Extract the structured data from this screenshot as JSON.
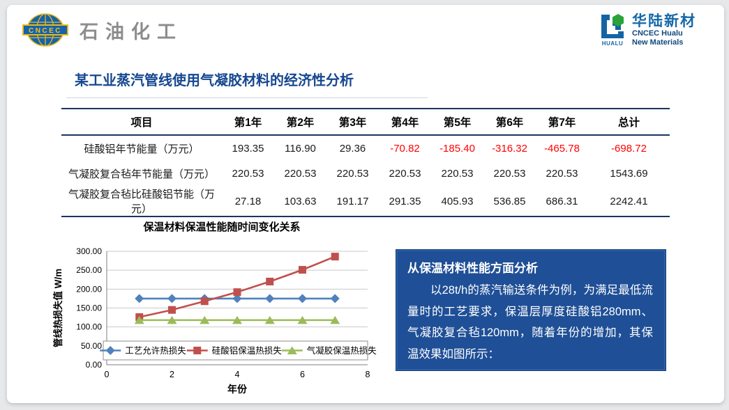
{
  "header": {
    "left_logo": {
      "emblem_text": "CNCEC",
      "brand_text": "石油化工"
    },
    "right_logo": {
      "icon_word": "HUALU",
      "brand_cn": "华陆新材",
      "brand_en_line1": "CNCEC Hualu",
      "brand_en_line2": "New Materials"
    }
  },
  "title": "某工业蒸汽管线使用气凝胶材料的经济性分析",
  "table": {
    "headers": [
      "项目",
      "第1年",
      "第2年",
      "第3年",
      "第4年",
      "第5年",
      "第6年",
      "第7年",
      "总计"
    ],
    "rows": [
      {
        "label": "硅酸铝年节能量（万元）",
        "values": [
          "193.35",
          "116.90",
          "29.36",
          "-70.82",
          "-185.40",
          "-316.32",
          "-465.78",
          "-698.72"
        ]
      },
      {
        "label": "气凝胶复合毡年节能量（万元）",
        "values": [
          "220.53",
          "220.53",
          "220.53",
          "220.53",
          "220.53",
          "220.53",
          "220.53",
          "1543.69"
        ]
      },
      {
        "label": "气凝胶复合毡比硅酸铝节能（万元）",
        "values": [
          "27.18",
          "103.63",
          "191.17",
          "291.35",
          "405.93",
          "536.85",
          "686.31",
          "2242.41"
        ]
      }
    ],
    "negative_color": "#ff0000"
  },
  "chart_data": {
    "type": "line",
    "title": "保温材料保温性能随时间变化关系",
    "xlabel": "年份",
    "ylabel": "管线热损失值 W/m",
    "xlim": [
      0,
      8
    ],
    "ylim": [
      0,
      300
    ],
    "x_ticks": [
      0,
      2,
      4,
      6,
      8
    ],
    "y_ticks": [
      "0.00",
      "50.00",
      "100.00",
      "150.00",
      "200.00",
      "250.00",
      "300.00"
    ],
    "grid": true,
    "legend_position": "bottom-inside",
    "x": [
      1,
      2,
      3,
      4,
      5,
      6,
      7
    ],
    "series": [
      {
        "name": "工艺允许热损失",
        "color": "#4f81bd",
        "marker": "diamond",
        "values": [
          175,
          175,
          175,
          175,
          175,
          175,
          175
        ]
      },
      {
        "name": "硅酸铝保温热损失",
        "color": "#c0504d",
        "marker": "square",
        "values": [
          126,
          145,
          168,
          192,
          220,
          251,
          286
        ]
      },
      {
        "name": "气凝胶保温热损失",
        "color": "#9bbb59",
        "marker": "triangle",
        "values": [
          118,
          118,
          118,
          118,
          118,
          118,
          118
        ]
      }
    ]
  },
  "info_box": {
    "title": "从保温材料性能方面分析",
    "body": "以28t/h的蒸汽输送条件为例，为满足最低流量时的工艺要求，保温层厚度硅酸铝280mm、气凝胶复合毡120mm，随着年份的增加，其保温效果如图所示：",
    "bg": "#1f4f96",
    "border": "#163e74"
  },
  "colors": {
    "title_blue": "#164790",
    "table_border_navy": "#17365d",
    "series_blue": "#4f81bd",
    "series_red": "#c0504d",
    "series_green": "#9bbb59"
  }
}
